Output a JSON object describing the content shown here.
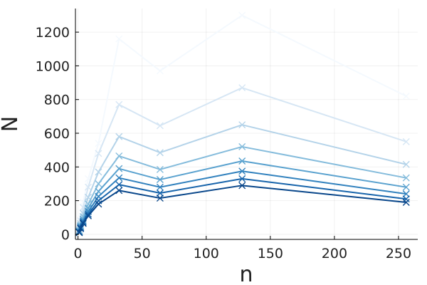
{
  "chart_data": {
    "type": "line",
    "title": "",
    "xlabel": "n",
    "ylabel": "N",
    "xlim": [
      -2,
      265
    ],
    "ylim": [
      -30,
      1340
    ],
    "x_ticks": [
      0,
      50,
      100,
      150,
      200,
      250
    ],
    "y_ticks": [
      0,
      200,
      400,
      600,
      800,
      1000,
      1200
    ],
    "grid": true,
    "legend": "none",
    "marker": "x",
    "x": [
      1,
      2,
      4,
      8,
      16,
      32,
      64,
      128,
      256
    ],
    "series": [
      {
        "color": "#f4f9fe",
        "values": [
          40,
          100,
          190,
          330,
          540,
          1160,
          970,
          1300,
          820
        ]
      },
      {
        "color": "#d6e6f4",
        "values": [
          30,
          80,
          160,
          280,
          480,
          770,
          645,
          870,
          550
        ]
      },
      {
        "color": "#b4d3e9",
        "values": [
          25,
          65,
          125,
          220,
          370,
          580,
          485,
          650,
          415
        ]
      },
      {
        "color": "#85bcdc",
        "values": [
          20,
          55,
          105,
          180,
          300,
          465,
          385,
          520,
          335
        ]
      },
      {
        "color": "#5aa2cf",
        "values": [
          18,
          48,
          90,
          155,
          255,
          390,
          325,
          435,
          280
        ]
      },
      {
        "color": "#3282be",
        "values": [
          15,
          42,
          80,
          135,
          225,
          335,
          280,
          375,
          240
        ]
      },
      {
        "color": "#1764ab",
        "values": [
          13,
          38,
          72,
          120,
          200,
          295,
          245,
          330,
          210
        ]
      },
      {
        "color": "#08468a",
        "values": [
          10,
          34,
          65,
          110,
          180,
          260,
          215,
          290,
          190
        ]
      }
    ]
  }
}
